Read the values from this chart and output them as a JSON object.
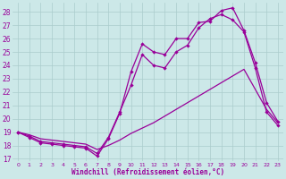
{
  "xlabel": "Windchill (Refroidissement éolien,°C)",
  "xlim": [
    -0.5,
    23.5
  ],
  "ylim": [
    16.8,
    28.7
  ],
  "yticks": [
    17,
    18,
    19,
    20,
    21,
    22,
    23,
    24,
    25,
    26,
    27,
    28
  ],
  "xticks": [
    0,
    1,
    2,
    3,
    4,
    5,
    6,
    7,
    8,
    9,
    10,
    11,
    12,
    13,
    14,
    15,
    16,
    17,
    18,
    19,
    20,
    21,
    22,
    23
  ],
  "bg_color": "#cce8e8",
  "grid_color": "#aacccc",
  "line_color": "#990099",
  "line1_y": [
    19.0,
    18.6,
    18.2,
    18.1,
    18.0,
    17.9,
    17.8,
    17.2,
    18.5,
    20.4,
    23.5,
    25.6,
    25.0,
    24.8,
    26.0,
    26.0,
    27.2,
    27.3,
    28.1,
    28.3,
    26.6,
    24.2,
    21.2,
    19.8
  ],
  "line2_y": [
    19.0,
    18.7,
    18.3,
    18.2,
    18.1,
    18.0,
    17.9,
    17.4,
    18.6,
    20.5,
    22.5,
    24.8,
    24.0,
    23.8,
    25.0,
    25.5,
    26.8,
    27.5,
    27.8,
    27.4,
    26.5,
    23.8,
    20.5,
    19.5
  ],
  "line3_y": [
    19.0,
    18.8,
    18.5,
    18.4,
    18.3,
    18.2,
    18.1,
    17.7,
    18.0,
    18.4,
    18.9,
    19.3,
    19.7,
    20.2,
    20.7,
    21.2,
    21.7,
    22.2,
    22.7,
    23.2,
    23.7,
    22.2,
    20.7,
    19.7
  ]
}
